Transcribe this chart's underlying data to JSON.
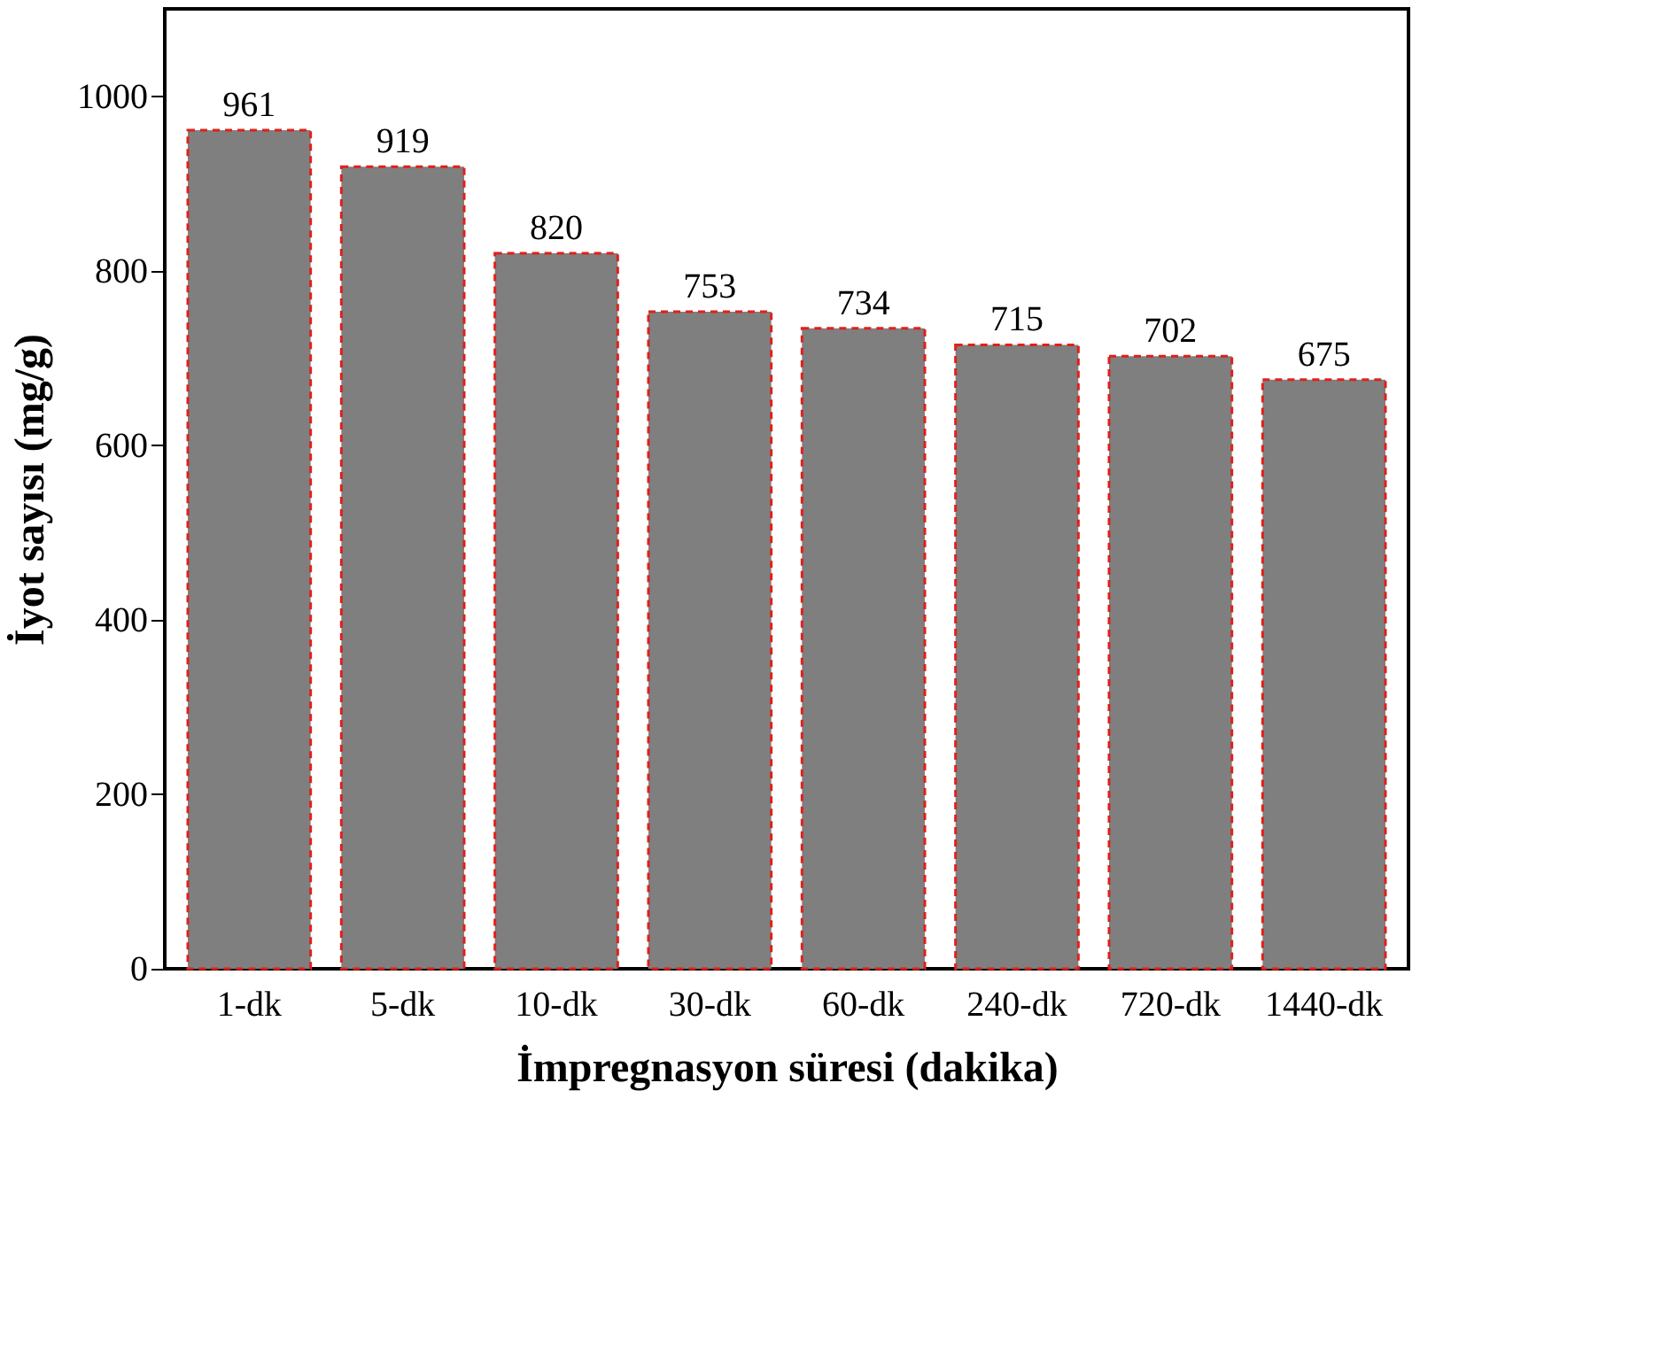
{
  "chart_data": {
    "type": "bar",
    "xlabel": "İmpregnasyon süresi (dakika)",
    "ylabel": "İyot sayısı (mg/g)",
    "categories": [
      "1-dk",
      "5-dk",
      "10-dk",
      "30-dk",
      "60-dk",
      "240-dk",
      "720-dk",
      "1440-dk"
    ],
    "values": [
      961,
      919,
      820,
      753,
      734,
      715,
      702,
      675
    ],
    "color": "#7f7f7f",
    "ylim": [
      0,
      1100
    ],
    "yticks": [
      0,
      200,
      400,
      600,
      800,
      1000
    ],
    "data_labels": true
  }
}
